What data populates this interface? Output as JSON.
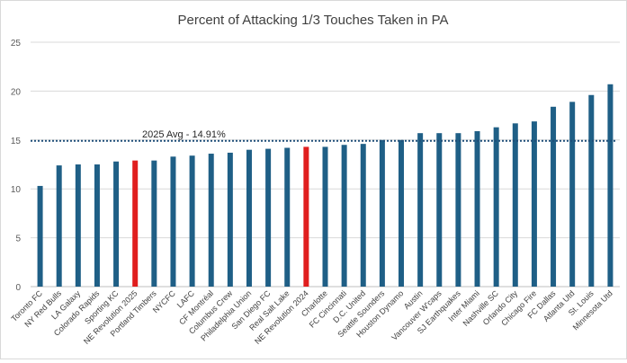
{
  "chart_data": {
    "type": "bar",
    "title": "Percent of Attacking 1/3 Touches Taken in PA",
    "xlabel": "",
    "ylabel": "",
    "ylim": [
      0,
      25
    ],
    "yticks": [
      "0",
      "5",
      "10",
      "15",
      "20",
      "25"
    ],
    "grid": true,
    "bar_color": "#1f5f86",
    "highlight_color": "#e01e1e",
    "categories": [
      "Toronto FC",
      "NY Red Bulls",
      "LA Galaxy",
      "Colorado Rapids",
      "Sporting KC",
      "NE Revolution 2025",
      "Portland Timbers",
      "NYCFC",
      "LAFC",
      "CF Montréal",
      "Columbus Crew",
      "Philadelphia Union",
      "San Diego FC",
      "Real Salt Lake",
      "NE Revolution 2024",
      "Charlotte",
      "FC Cincinnati",
      "D.C. United",
      "Seattle Sounders",
      "Houston Dynamo",
      "Austin",
      "Vancouver W'caps",
      "SJ Earthquakes",
      "Inter Miami",
      "Nashville SC",
      "Orlando City",
      "Chicago Fire",
      "FC Dallas",
      "Atlanta Utd",
      "St. Louis",
      "Minnesota Utd"
    ],
    "values": [
      10.3,
      12.4,
      12.5,
      12.5,
      12.8,
      12.9,
      12.9,
      13.3,
      13.4,
      13.6,
      13.7,
      14.0,
      14.1,
      14.2,
      14.3,
      14.3,
      14.5,
      14.6,
      15.0,
      15.0,
      15.7,
      15.7,
      15.7,
      15.9,
      16.3,
      16.7,
      16.9,
      18.4,
      18.9,
      19.6,
      20.7
    ],
    "highlighted": [
      "NE Revolution 2025",
      "NE Revolution 2024"
    ],
    "reference_line": {
      "value": 14.91,
      "label": "2025 Avg - 14.91%",
      "color": "#1f4e79",
      "style": "dotted"
    }
  }
}
